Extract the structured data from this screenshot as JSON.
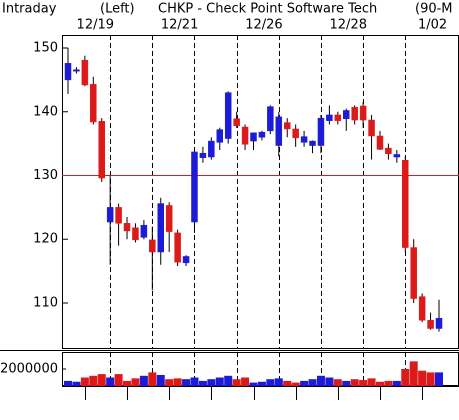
{
  "chart_data": {
    "type": "candlestick",
    "title": "CHKP - Check Point Software Tech",
    "header": "Intraday",
    "axis_note": "(Left)",
    "interval_note": "(90-M",
    "categories": [
      null,
      null,
      null,
      "12/19",
      null,
      null,
      null,
      null,
      null,
      null,
      null,
      null,
      null,
      "12/21",
      null,
      null,
      null,
      null,
      null,
      null,
      null,
      null,
      null,
      "12/26",
      null,
      null,
      null,
      null,
      null,
      null,
      null,
      null,
      null,
      "12/28",
      null,
      null,
      null,
      null,
      null,
      null,
      null,
      null,
      null,
      "1/02",
      null
    ],
    "open": [
      145.0,
      146.5,
      148.1,
      144.3,
      138.5,
      122.7,
      125.0,
      122.5,
      121.8,
      120.3,
      119.9,
      118.0,
      125.3,
      121.0,
      116.3,
      122.7,
      132.8,
      132.9,
      135.2,
      135.8,
      138.9,
      137.6,
      135.4,
      136.0,
      137.0,
      134.7,
      138.3,
      137.3,
      135.2,
      134.7,
      134.7,
      138.6,
      139.5,
      138.9,
      140.7,
      140.9,
      138.7,
      136.2,
      134.3,
      132.9,
      132.4,
      118.7,
      111.0,
      107.3,
      106.0
    ],
    "high": [
      150.0,
      147.0,
      148.8,
      145.5,
      139.0,
      130.0,
      125.6,
      123.5,
      122.5,
      123.0,
      122.0,
      126.5,
      125.8,
      121.5,
      117.5,
      134.0,
      134.5,
      136.0,
      137.5,
      143.2,
      140.0,
      138.0,
      136.5,
      137.0,
      141.0,
      140.0,
      139.0,
      138.0,
      137.0,
      135.5,
      139.5,
      141.0,
      140.0,
      140.5,
      141.0,
      141.5,
      139.5,
      137.0,
      135.0,
      134.0,
      133.0,
      120.0,
      111.5,
      108.5,
      110.5
    ],
    "low": [
      142.8,
      146.0,
      144.0,
      138.0,
      129.0,
      116.0,
      119.0,
      120.0,
      119.5,
      120.0,
      112.0,
      116.0,
      118.0,
      115.8,
      115.8,
      121.0,
      132.0,
      132.5,
      134.0,
      135.0,
      137.5,
      134.0,
      134.0,
      135.5,
      136.5,
      133.0,
      136.0,
      134.5,
      134.5,
      133.5,
      133.5,
      138.0,
      138.0,
      137.0,
      138.0,
      137.5,
      132.5,
      134.0,
      132.5,
      132.0,
      118.0,
      110.0,
      107.0,
      105.8,
      105.5
    ],
    "close": [
      147.6,
      146.6,
      144.2,
      138.4,
      129.6,
      125.0,
      122.5,
      121.3,
      119.9,
      122.2,
      118.0,
      125.6,
      121.2,
      116.4,
      117.3,
      133.7,
      133.5,
      135.4,
      137.2,
      143.0,
      137.8,
      134.9,
      136.7,
      136.8,
      140.8,
      139.2,
      137.3,
      135.9,
      136.1,
      135.4,
      139.0,
      139.5,
      138.6,
      140.2,
      138.7,
      138.7,
      136.2,
      134.1,
      133.4,
      133.3,
      118.7,
      110.7,
      107.3,
      106.0,
      107.6
    ],
    "up_color": "#1c1cd8",
    "down_color": "#dd1a1a",
    "ylim": [
      102.94,
      152.04
    ],
    "yticks": [
      110,
      120,
      130,
      140,
      150
    ],
    "reference_line": 130,
    "reference_color": "#cc2222",
    "volume": {
      "values": [
        600000,
        500000,
        1000000,
        1200000,
        1400000,
        1000000,
        1400000,
        600000,
        900000,
        1200000,
        1600000,
        1300000,
        800000,
        900000,
        800000,
        1000000,
        600000,
        800000,
        1000000,
        1200000,
        800000,
        1000000,
        400000,
        500000,
        800000,
        900000,
        600000,
        400000,
        600000,
        800000,
        1200000,
        1000000,
        800000,
        600000,
        800000,
        700000,
        900000,
        500000,
        600000,
        600000,
        2000000,
        2900000,
        1800000,
        1600000,
        1600000
      ],
      "ylim": [
        0,
        4000000
      ],
      "yticks": [
        2000000
      ]
    }
  }
}
